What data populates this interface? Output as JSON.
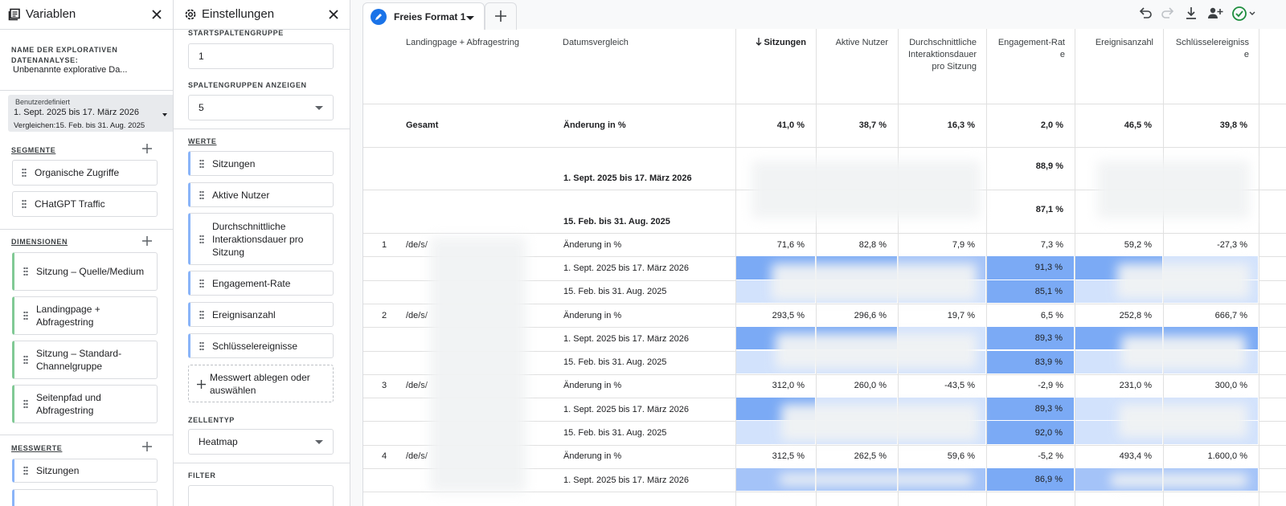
{
  "left_panel": {
    "title": "Variablen",
    "name_label": "NAME DER EXPLORATIVEN DATENANALYSE:",
    "name_value": "Unbenannte explorative Da...",
    "date": {
      "label": "Benutzerdefiniert",
      "range": "1. Sept. 2025 bis 17. März 2026",
      "compare": "Vergleichen:15. Feb. bis 31. Aug. 2025"
    },
    "segments": {
      "label": "SEGMENTE",
      "items": [
        "Organische Zugriffe",
        "CHatGPT Traffic"
      ]
    },
    "dimensions": {
      "label": "DIMENSIONEN",
      "items": [
        "Sitzung – Quelle/Medium",
        "Landingpage + Abfragestring",
        "Sitzung – Standard-Channelgruppe",
        "Seitenpfad und Abfragestring"
      ]
    },
    "metrics": {
      "label": "MESSWERTE",
      "items": [
        "Sitzungen"
      ]
    }
  },
  "middle_panel": {
    "title": "Einstellungen",
    "start_group_label": "STARTSPALTENGRUPPE",
    "start_group_value": "1",
    "show_groups_label": "SPALTENGRUPPEN ANZEIGEN",
    "show_groups_value": "5",
    "values_label": "WERTE",
    "values": [
      "Sitzungen",
      "Aktive Nutzer",
      "Durchschnittliche Interaktionsdauer pro Sitzung",
      "Engagement-Rate",
      "Ereignisanzahl",
      "Schlüsselereignisse"
    ],
    "drop_hint": "Messwert ablegen oder auswählen",
    "cell_type_label": "ZELLENTYP",
    "cell_type": "Heatmap",
    "filter_label": "FILTER"
  },
  "tab": "Freies Format 1",
  "table": {
    "columns": [
      "Landingpage + Abfragestring",
      "Datumsvergleich",
      "Sitzungen",
      "Aktive Nutzer",
      "Durchschnittliche Interaktionsdauer pro Sitzung",
      "Engagement-Rate",
      "Ereignisanzahl",
      "Schlüsselereignisse"
    ],
    "summary": {
      "label": "Gesamt",
      "change_label": "Änderung in %",
      "change": [
        "41,0 %",
        "38,7 %",
        "16,3 %",
        "2,0 %",
        "46,5 %",
        "39,8 %"
      ],
      "periods": [
        {
          "label": "1. Sept. 2025 bis 17. März 2026",
          "values": [
            null,
            null,
            null,
            "88,9 %",
            null,
            null
          ]
        },
        {
          "label": "15. Feb. bis 31. Aug. 2025",
          "values": [
            null,
            null,
            null,
            "87,1 %",
            null,
            null
          ]
        }
      ]
    },
    "rows": [
      {
        "index": "1",
        "page": "/de/s/",
        "change_label": "Änderung in %",
        "change": [
          "71,6 %",
          "82,8 %",
          "7,9 %",
          "7,3 %",
          "59,2 %",
          "-27,3 %"
        ],
        "periods": [
          {
            "label": "1. Sept. 2025 bis 17. März 2026",
            "values": [
              null,
              null,
              null,
              "91,3 %",
              null,
              null
            ]
          },
          {
            "label": "15. Feb. bis 31. Aug. 2025",
            "values": [
              null,
              null,
              null,
              "85,1 %",
              null,
              null
            ]
          }
        ]
      },
      {
        "index": "2",
        "page": "/de/s/",
        "change_label": "Änderung in %",
        "change": [
          "293,5 %",
          "296,6 %",
          "19,7 %",
          "6,5 %",
          "252,8 %",
          "666,7 %"
        ],
        "periods": [
          {
            "label": "1. Sept. 2025 bis 17. März 2026",
            "values": [
              null,
              null,
              null,
              "89,3 %",
              null,
              null
            ]
          },
          {
            "label": "15. Feb. bis 31. Aug. 2025",
            "values": [
              null,
              null,
              null,
              "83,9 %",
              null,
              null
            ]
          }
        ]
      },
      {
        "index": "3",
        "page": "/de/s/",
        "change_label": "Änderung in %",
        "change": [
          "312,0 %",
          "260,0 %",
          "-43,5 %",
          "-2,9 %",
          "231,0 %",
          "300,0 %"
        ],
        "periods": [
          {
            "label": "1. Sept. 2025 bis 17. März 2026",
            "values": [
              null,
              null,
              null,
              "89,3 %",
              null,
              null
            ]
          },
          {
            "label": "15. Feb. bis 31. Aug. 2025",
            "values": [
              null,
              null,
              null,
              "92,0 %",
              null,
              null
            ]
          }
        ]
      },
      {
        "index": "4",
        "page": "/de/s/",
        "change_label": "Änderung in %",
        "change": [
          "312,5 %",
          "262,5 %",
          "59,6 %",
          "-5,2 %",
          "493,4 %",
          "1.600,0 %"
        ],
        "periods": [
          {
            "label": "1. Sept. 2025 bis 17. März 2026",
            "values": [
              null,
              null,
              null,
              "86,9 %",
              null,
              null
            ]
          }
        ]
      }
    ]
  }
}
